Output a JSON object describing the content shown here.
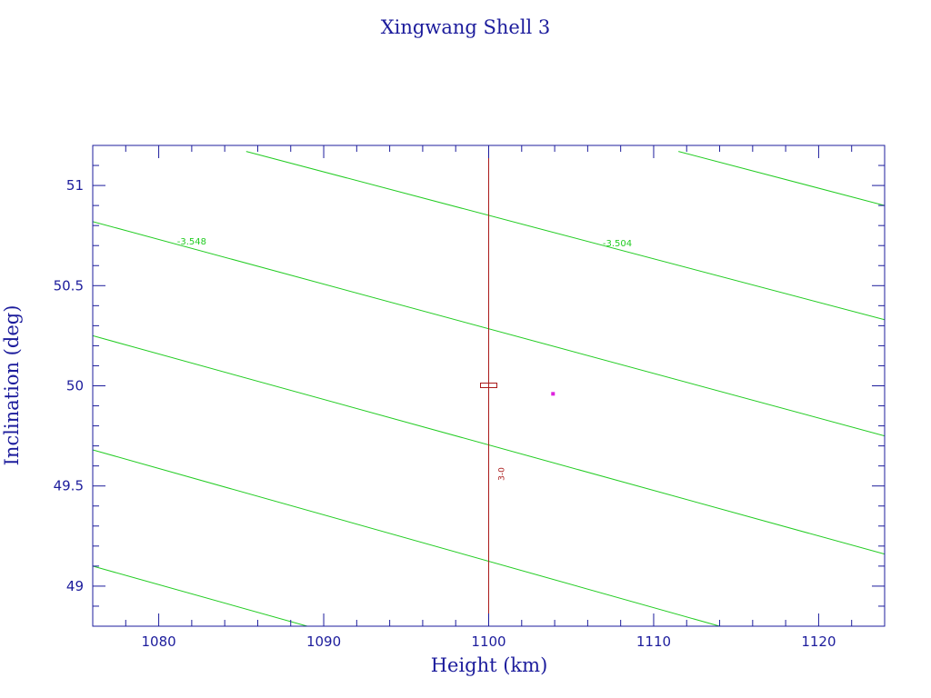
{
  "chart_data": {
    "type": "line",
    "title": "Xingwang Shell 3",
    "xlabel": "Height (km)",
    "ylabel": "Inclination (deg)",
    "xlim": [
      1076,
      1124
    ],
    "ylim": [
      48.8,
      51.2
    ],
    "xticks": [
      {
        "value": 1080,
        "label": "1080"
      },
      {
        "value": 1090,
        "label": "1090"
      },
      {
        "value": 1100,
        "label": "1100"
      },
      {
        "value": 1110,
        "label": "1110"
      },
      {
        "value": 1120,
        "label": "1120"
      }
    ],
    "yticks": [
      {
        "value": 49,
        "label": "49"
      },
      {
        "value": 49.5,
        "label": "49.5"
      },
      {
        "value": 50,
        "label": "50"
      },
      {
        "value": 50.5,
        "label": "50.5"
      },
      {
        "value": 51,
        "label": "51"
      }
    ],
    "grid": false,
    "colors": {
      "axes": "#1c1c9c",
      "contour": "#22cc22",
      "reference": "#aa1a1a",
      "point": "#dd22dd"
    },
    "contours": [
      {
        "points": [
          [
            1076,
            49.1
          ],
          [
            1089,
            48.8
          ]
        ]
      },
      {
        "points": [
          [
            1076,
            49.68
          ],
          [
            1114,
            48.8
          ]
        ]
      },
      {
        "points": [
          [
            1076,
            50.25
          ],
          [
            1124,
            49.16
          ]
        ]
      },
      {
        "points": [
          [
            1076,
            50.82
          ],
          [
            1124,
            49.75
          ]
        ],
        "label": "-3.548",
        "label_at": [
          1082,
          50.72
        ]
      },
      {
        "points": [
          [
            1085.3,
            51.17
          ],
          [
            1124,
            50.33
          ]
        ],
        "label": "-3.504",
        "label_at": [
          1107.8,
          50.71
        ]
      },
      {
        "points": [
          [
            1111.5,
            51.17
          ],
          [
            1124,
            50.9
          ]
        ]
      }
    ],
    "reference_line": {
      "x": 1100
    },
    "reference_box": {
      "x": 1100,
      "y": 50.0
    },
    "reference_label": {
      "text": "3-0",
      "x": 1100.5,
      "y": 49.56
    },
    "points": [
      {
        "x": 1103.9,
        "y": 49.96
      }
    ]
  }
}
